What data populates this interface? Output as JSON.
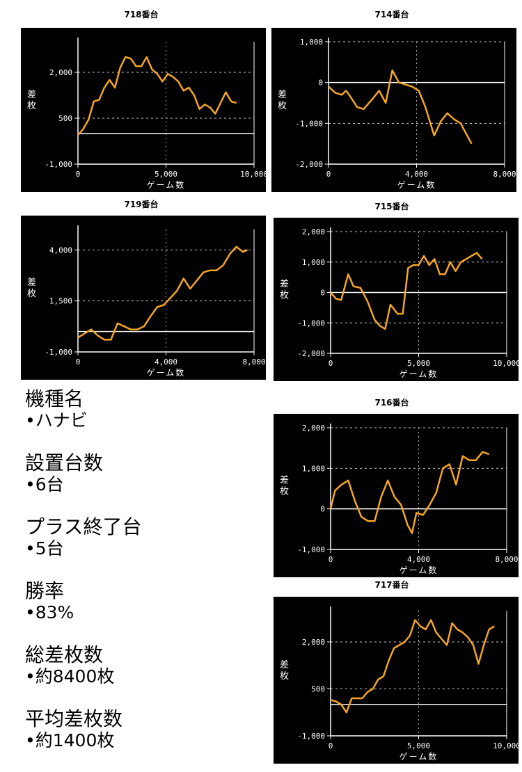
{
  "info": {
    "model_label": "機種名",
    "model_value": "•ハナビ",
    "count_label": "設置台数",
    "count_value": "•6台",
    "plus_label": "プラス終了台",
    "plus_value": "•5台",
    "winrate_label": "勝率",
    "winrate_value": "•83%",
    "total_label": "総差枚数",
    "total_value": "•約8400枚",
    "avg_label": "平均差枚数",
    "avg_value": "•約1400枚"
  },
  "colors": {
    "line": "#f5a623",
    "background": "#000000",
    "axis": "#ffffff"
  },
  "chart_data": [
    {
      "type": "line",
      "title": "718番台",
      "xlabel": "ゲーム数",
      "ylabel": "差枚",
      "xlim": [
        0,
        10000
      ],
      "ylim": [
        -1000,
        3000
      ],
      "xticks": [
        0,
        5000,
        10000
      ],
      "xtick_labels": [
        "0",
        "5,000",
        "10,000"
      ],
      "yticks": [
        -1000,
        500,
        2000
      ],
      "ytick_labels": [
        "-1,000",
        "500",
        "2,000"
      ],
      "x": [
        0,
        300,
        600,
        900,
        1200,
        1500,
        1800,
        2100,
        2400,
        2700,
        3000,
        3300,
        3600,
        3900,
        4200,
        4500,
        4800,
        5100,
        5400,
        5700,
        6000,
        6300,
        6600,
        6900,
        7200,
        7500,
        7800,
        8100,
        8400,
        8700,
        9000
      ],
      "y": [
        -50,
        150,
        450,
        1050,
        1100,
        1500,
        1750,
        1500,
        2150,
        2500,
        2450,
        2200,
        2200,
        2500,
        2100,
        1950,
        1700,
        1950,
        1850,
        1700,
        1400,
        1500,
        1250,
        800,
        950,
        850,
        650,
        1000,
        1350,
        1050,
        1000
      ]
    },
    {
      "type": "line",
      "title": "714番台",
      "xlabel": "ゲーム数",
      "ylabel": "差枚",
      "xlim": [
        0,
        8000
      ],
      "ylim": [
        -2000,
        1000
      ],
      "xticks": [
        0,
        4000,
        8000
      ],
      "xtick_labels": [
        "0",
        "4,000",
        "8,000"
      ],
      "yticks": [
        -2000,
        -1000,
        0,
        1000
      ],
      "ytick_labels": [
        "-2,000",
        "-1,000",
        "0",
        "1,000"
      ],
      "x": [
        0,
        300,
        600,
        800,
        1000,
        1300,
        1600,
        2000,
        2300,
        2600,
        2900,
        3200,
        3500,
        3800,
        4100,
        4400,
        4800,
        5100,
        5400,
        5700,
        6000,
        6300,
        6500
      ],
      "y": [
        -100,
        -250,
        -300,
        -200,
        -350,
        -600,
        -650,
        -400,
        -200,
        -500,
        300,
        0,
        -50,
        -100,
        -200,
        -600,
        -1300,
        -950,
        -750,
        -900,
        -1000,
        -1300,
        -1500
      ]
    },
    {
      "type": "line",
      "title": "719番台",
      "xlabel": "ゲーム数",
      "ylabel": "差枚",
      "xlim": [
        0,
        8000
      ],
      "ylim": [
        -1000,
        5000
      ],
      "xticks": [
        0,
        4000,
        8000
      ],
      "xtick_labels": [
        "0",
        "4,000",
        "8,000"
      ],
      "yticks": [
        -1000,
        1500,
        4000
      ],
      "ytick_labels": [
        "-1,000",
        "1,500",
        "4,000"
      ],
      "x": [
        0,
        300,
        600,
        900,
        1200,
        1500,
        1800,
        2100,
        2400,
        2700,
        3000,
        3300,
        3600,
        3900,
        4200,
        4500,
        4800,
        5100,
        5400,
        5700,
        6000,
        6300,
        6600,
        6900,
        7200,
        7500,
        7700
      ],
      "y": [
        -300,
        -100,
        100,
        -200,
        -400,
        -400,
        400,
        250,
        100,
        100,
        250,
        750,
        1200,
        1300,
        1650,
        2000,
        2600,
        2100,
        2500,
        2900,
        3000,
        3000,
        3250,
        3800,
        4150,
        3900,
        4000
      ]
    },
    {
      "type": "line",
      "title": "715番台",
      "xlabel": "ゲーム数",
      "ylabel": "差枚",
      "xlim": [
        0,
        10000
      ],
      "ylim": [
        -2000,
        2000
      ],
      "xticks": [
        0,
        5000,
        10000
      ],
      "xtick_labels": [
        "0",
        "5,000",
        "10,000"
      ],
      "yticks": [
        -2000,
        -1000,
        0,
        1000,
        2000
      ],
      "ytick_labels": [
        "-2,000",
        "-1,000",
        "0",
        "1,000",
        "2,000"
      ],
      "x": [
        0,
        300,
        600,
        1000,
        1300,
        1700,
        2100,
        2500,
        2800,
        3100,
        3400,
        3800,
        4100,
        4400,
        4700,
        5000,
        5300,
        5600,
        5900,
        6200,
        6500,
        6800,
        7100,
        7400,
        7700,
        8000,
        8300,
        8600
      ],
      "y": [
        0,
        -200,
        -250,
        600,
        200,
        150,
        -300,
        -900,
        -1100,
        -1200,
        -400,
        -700,
        -700,
        800,
        900,
        900,
        1200,
        900,
        1100,
        600,
        600,
        1000,
        700,
        1000,
        1100,
        1200,
        1300,
        1100
      ]
    },
    {
      "type": "line",
      "title": "716番台",
      "xlabel": "ゲーム数",
      "ylabel": "差枚",
      "xlim": [
        0,
        8000
      ],
      "ylim": [
        -1000,
        2000
      ],
      "xticks": [
        0,
        4000,
        8000
      ],
      "xtick_labels": [
        "0",
        "4,000",
        "8,000"
      ],
      "yticks": [
        -1000,
        0,
        1000,
        2000
      ],
      "ytick_labels": [
        "-1,000",
        "0",
        "1,000",
        "2,000"
      ],
      "x": [
        0,
        200,
        500,
        800,
        1100,
        1400,
        1700,
        2000,
        2300,
        2600,
        2900,
        3200,
        3500,
        3700,
        3900,
        4200,
        4500,
        4800,
        5100,
        5400,
        5700,
        6000,
        6300,
        6600,
        6900,
        7200
      ],
      "y": [
        0,
        450,
        600,
        700,
        200,
        -200,
        -300,
        -300,
        300,
        700,
        300,
        100,
        -400,
        -600,
        -100,
        -150,
        100,
        400,
        1000,
        1100,
        600,
        1300,
        1200,
        1200,
        1400,
        1350
      ]
    },
    {
      "type": "line",
      "title": "717番台",
      "xlabel": "ゲーム数",
      "ylabel": "差枚",
      "xlim": [
        0,
        10000
      ],
      "ylim": [
        -1000,
        3000
      ],
      "xticks": [
        0,
        5000,
        10000
      ],
      "xtick_labels": [
        "0",
        "5,000",
        "10,000"
      ],
      "yticks": [
        -1000,
        500,
        2000
      ],
      "ytick_labels": [
        "-1,000",
        "500",
        "2,000"
      ],
      "x": [
        0,
        300,
        600,
        900,
        1200,
        1500,
        1800,
        2100,
        2400,
        2700,
        3000,
        3300,
        3600,
        3900,
        4200,
        4500,
        4800,
        5100,
        5400,
        5700,
        6000,
        6300,
        6600,
        6900,
        7200,
        7500,
        7800,
        8100,
        8400,
        8700,
        9000,
        9300
      ],
      "y": [
        150,
        100,
        0,
        -250,
        200,
        200,
        200,
        400,
        500,
        800,
        900,
        1400,
        1800,
        1900,
        2000,
        2200,
        2700,
        2500,
        2400,
        2700,
        2300,
        2100,
        1900,
        2600,
        2400,
        2300,
        2150,
        1900,
        1300,
        1900,
        2400,
        2500
      ]
    }
  ]
}
